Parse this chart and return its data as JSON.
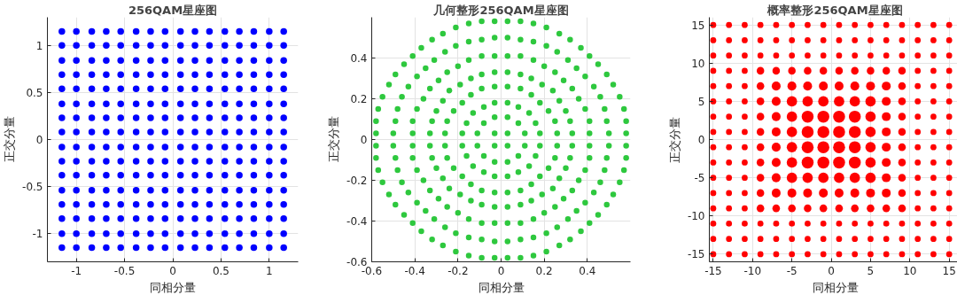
{
  "chart_data": [
    {
      "type": "scatter",
      "title": "256QAM星座图",
      "xlabel": "同相分量",
      "ylabel": "正交分量",
      "marker": "circle",
      "grid": true,
      "xlim": [
        -1.3,
        1.3
      ],
      "ylim": [
        -1.3,
        1.3
      ],
      "xticks": [
        -1,
        -0.5,
        0,
        0.5,
        1
      ],
      "yticks": [
        -1,
        -0.5,
        0,
        0.5,
        1
      ],
      "x": [
        -1.15,
        -1.0,
        -0.84,
        -0.69,
        -0.54,
        -0.38,
        -0.23,
        -0.08,
        0.08,
        0.23,
        0.38,
        0.54,
        0.69,
        0.84,
        1.0,
        1.15
      ],
      "series": [
        {
          "color": "#0000ff",
          "values": [
            1.15,
            1.15,
            1.15,
            1.15,
            1.15,
            1.15,
            1.15,
            1.15,
            1.15,
            1.15,
            1.15,
            1.15,
            1.15,
            1.15,
            1.15,
            1.15
          ]
        },
        {
          "color": "#0000ff",
          "values": [
            1.0,
            1.0,
            1.0,
            1.0,
            1.0,
            1.0,
            1.0,
            1.0,
            1.0,
            1.0,
            1.0,
            1.0,
            1.0,
            1.0,
            1.0,
            1.0
          ]
        },
        {
          "color": "#0000ff",
          "values": [
            0.84,
            0.84,
            0.84,
            0.84,
            0.84,
            0.84,
            0.84,
            0.84,
            0.84,
            0.84,
            0.84,
            0.84,
            0.84,
            0.84,
            0.84,
            0.84
          ]
        },
        {
          "color": "#0000ff",
          "values": [
            0.69,
            0.69,
            0.69,
            0.69,
            0.69,
            0.69,
            0.69,
            0.69,
            0.69,
            0.69,
            0.69,
            0.69,
            0.69,
            0.69,
            0.69,
            0.69
          ]
        },
        {
          "color": "#0000ff",
          "values": [
            0.54,
            0.54,
            0.54,
            0.54,
            0.54,
            0.54,
            0.54,
            0.54,
            0.54,
            0.54,
            0.54,
            0.54,
            0.54,
            0.54,
            0.54,
            0.54
          ]
        },
        {
          "color": "#0000ff",
          "values": [
            0.38,
            0.38,
            0.38,
            0.38,
            0.38,
            0.38,
            0.38,
            0.38,
            0.38,
            0.38,
            0.38,
            0.38,
            0.38,
            0.38,
            0.38,
            0.38
          ]
        },
        {
          "color": "#0000ff",
          "values": [
            0.23,
            0.23,
            0.23,
            0.23,
            0.23,
            0.23,
            0.23,
            0.23,
            0.23,
            0.23,
            0.23,
            0.23,
            0.23,
            0.23,
            0.23,
            0.23
          ]
        },
        {
          "color": "#0000ff",
          "values": [
            0.08,
            0.08,
            0.08,
            0.08,
            0.08,
            0.08,
            0.08,
            0.08,
            0.08,
            0.08,
            0.08,
            0.08,
            0.08,
            0.08,
            0.08,
            0.08
          ]
        },
        {
          "color": "#0000ff",
          "values": [
            -0.08,
            -0.08,
            -0.08,
            -0.08,
            -0.08,
            -0.08,
            -0.08,
            -0.08,
            -0.08,
            -0.08,
            -0.08,
            -0.08,
            -0.08,
            -0.08,
            -0.08,
            -0.08
          ]
        },
        {
          "color": "#0000ff",
          "values": [
            -0.23,
            -0.23,
            -0.23,
            -0.23,
            -0.23,
            -0.23,
            -0.23,
            -0.23,
            -0.23,
            -0.23,
            -0.23,
            -0.23,
            -0.23,
            -0.23,
            -0.23,
            -0.23
          ]
        },
        {
          "color": "#0000ff",
          "values": [
            -0.38,
            -0.38,
            -0.38,
            -0.38,
            -0.38,
            -0.38,
            -0.38,
            -0.38,
            -0.38,
            -0.38,
            -0.38,
            -0.38,
            -0.38,
            -0.38,
            -0.38,
            -0.38
          ]
        },
        {
          "color": "#0000ff",
          "values": [
            -0.54,
            -0.54,
            -0.54,
            -0.54,
            -0.54,
            -0.54,
            -0.54,
            -0.54,
            -0.54,
            -0.54,
            -0.54,
            -0.54,
            -0.54,
            -0.54,
            -0.54,
            -0.54
          ]
        },
        {
          "color": "#0000ff",
          "values": [
            -0.69,
            -0.69,
            -0.69,
            -0.69,
            -0.69,
            -0.69,
            -0.69,
            -0.69,
            -0.69,
            -0.69,
            -0.69,
            -0.69,
            -0.69,
            -0.69,
            -0.69,
            -0.69
          ]
        },
        {
          "color": "#0000ff",
          "values": [
            -0.84,
            -0.84,
            -0.84,
            -0.84,
            -0.84,
            -0.84,
            -0.84,
            -0.84,
            -0.84,
            -0.84,
            -0.84,
            -0.84,
            -0.84,
            -0.84,
            -0.84,
            -0.84
          ]
        },
        {
          "color": "#0000ff",
          "values": [
            -1.0,
            -1.0,
            -1.0,
            -1.0,
            -1.0,
            -1.0,
            -1.0,
            -1.0,
            -1.0,
            -1.0,
            -1.0,
            -1.0,
            -1.0,
            -1.0,
            -1.0,
            -1.0
          ]
        },
        {
          "color": "#0000ff",
          "values": [
            -1.15,
            -1.15,
            -1.15,
            -1.15,
            -1.15,
            -1.15,
            -1.15,
            -1.15,
            -1.15,
            -1.15,
            -1.15,
            -1.15,
            -1.15,
            -1.15,
            -1.15,
            -1.15
          ]
        }
      ]
    },
    {
      "type": "scatter",
      "title": "几何整形256QAM星座图",
      "xlabel": "同相分量",
      "ylabel": "正交分量",
      "marker": "circle",
      "grid": true,
      "xlim": [
        -0.6,
        0.6
      ],
      "ylim": [
        -0.6,
        0.6
      ],
      "xticks": [
        -0.6,
        -0.4,
        -0.2,
        0,
        0.2,
        0.4
      ],
      "yticks": [
        -0.6,
        -0.4,
        -0.2,
        0,
        0.2,
        0.4
      ],
      "series": [
        {
          "color": "#2ec83e",
          "x": [
            0.03,
            -0.03,
            -0.03,
            0.03
          ],
          "values": [
            0.03,
            0.03,
            -0.03,
            -0.03
          ]
        },
        {
          "color": "#2ec83e",
          "x": [
            0.11,
            0.08,
            0.03,
            -0.11,
            -0.08,
            -0.03,
            -0.11,
            -0.08,
            -0.03,
            0.11,
            0.08,
            0.03
          ],
          "values": [
            0.03,
            0.08,
            0.11,
            0.03,
            0.08,
            0.11,
            -0.03,
            -0.08,
            -0.11,
            -0.03,
            -0.08,
            -0.11
          ]
        },
        {
          "color": "#2ec83e",
          "x": [
            0.18,
            0.16,
            0.13,
            0.08,
            0.03,
            -0.18,
            -0.16,
            -0.13,
            -0.08,
            -0.03,
            -0.18,
            -0.16,
            -0.13,
            -0.08,
            -0.03,
            0.18,
            0.16,
            0.13,
            0.08,
            0.03
          ],
          "values": [
            0.03,
            0.08,
            0.13,
            0.16,
            0.18,
            0.03,
            0.08,
            0.13,
            0.16,
            0.18,
            -0.03,
            -0.08,
            -0.13,
            -0.16,
            -0.18,
            -0.03,
            -0.08,
            -0.13,
            -0.16,
            -0.18
          ]
        },
        {
          "color": "#2ec83e",
          "x": [
            0.26,
            0.25,
            0.22,
            0.18,
            0.14,
            0.09,
            0.03,
            -0.26,
            -0.25,
            -0.22,
            -0.18,
            -0.14,
            -0.09,
            -0.03,
            -0.26,
            -0.25,
            -0.22,
            -0.18,
            -0.14,
            -0.09,
            -0.03,
            0.26,
            0.25,
            0.22,
            0.18,
            0.14,
            0.09,
            0.03
          ],
          "values": [
            0.03,
            0.09,
            0.14,
            0.18,
            0.22,
            0.25,
            0.26,
            0.03,
            0.09,
            0.14,
            0.18,
            0.22,
            0.25,
            0.26,
            -0.03,
            -0.09,
            -0.14,
            -0.18,
            -0.22,
            -0.25,
            -0.26,
            -0.03,
            -0.09,
            -0.14,
            -0.18,
            -0.22,
            -0.25,
            -0.26
          ]
        },
        {
          "color": "#2ec83e",
          "x": [
            0.33,
            0.32,
            0.3,
            0.27,
            0.24,
            0.19,
            0.14,
            0.09,
            0.03,
            -0.33,
            -0.32,
            -0.3,
            -0.27,
            -0.24,
            -0.19,
            -0.14,
            -0.09,
            -0.03,
            -0.33,
            -0.32,
            -0.3,
            -0.27,
            -0.24,
            -0.19,
            -0.14,
            -0.09,
            -0.03,
            0.33,
            0.32,
            0.3,
            0.27,
            0.24,
            0.19,
            0.14,
            0.09,
            0.03
          ],
          "values": [
            0.03,
            0.09,
            0.14,
            0.19,
            0.24,
            0.27,
            0.3,
            0.32,
            0.33,
            0.03,
            0.09,
            0.14,
            0.19,
            0.24,
            0.27,
            0.3,
            0.32,
            0.33,
            -0.03,
            -0.09,
            -0.14,
            -0.19,
            -0.24,
            -0.27,
            -0.3,
            -0.32,
            -0.33,
            -0.03,
            -0.09,
            -0.14,
            -0.19,
            -0.24,
            -0.27,
            -0.3,
            -0.32,
            -0.33
          ]
        },
        {
          "color": "#2ec83e",
          "x": [
            0.41,
            0.41,
            0.39,
            0.36,
            0.33,
            0.29,
            0.25,
            0.2,
            0.15,
            0.09,
            0.03,
            -0.41,
            -0.41,
            -0.39,
            -0.36,
            -0.33,
            -0.29,
            -0.25,
            -0.2,
            -0.15,
            -0.09,
            -0.03,
            -0.41,
            -0.41,
            -0.39,
            -0.36,
            -0.33,
            -0.29,
            -0.25,
            -0.2,
            -0.15,
            -0.09,
            -0.03,
            0.41,
            0.41,
            0.39,
            0.36,
            0.33,
            0.29,
            0.25,
            0.2,
            0.15,
            0.09,
            0.03
          ],
          "values": [
            0.03,
            0.09,
            0.15,
            0.2,
            0.25,
            0.29,
            0.33,
            0.36,
            0.39,
            0.41,
            0.41,
            0.03,
            0.09,
            0.15,
            0.2,
            0.25,
            0.29,
            0.33,
            0.36,
            0.39,
            0.41,
            0.41,
            -0.03,
            -0.09,
            -0.15,
            -0.2,
            -0.25,
            -0.29,
            -0.33,
            -0.36,
            -0.39,
            -0.41,
            -0.41,
            -0.03,
            -0.09,
            -0.15,
            -0.2,
            -0.25,
            -0.29,
            -0.33,
            -0.36,
            -0.39,
            -0.41,
            -0.41
          ]
        },
        {
          "color": "#2ec83e",
          "x": [
            0.5,
            0.49,
            0.48,
            0.46,
            0.43,
            0.39,
            0.35,
            0.31,
            0.26,
            0.21,
            0.15,
            0.09,
            0.03,
            -0.5,
            -0.49,
            -0.48,
            -0.46,
            -0.43,
            -0.39,
            -0.35,
            -0.31,
            -0.26,
            -0.21,
            -0.15,
            -0.09,
            -0.03,
            -0.5,
            -0.49,
            -0.48,
            -0.46,
            -0.43,
            -0.39,
            -0.35,
            -0.31,
            -0.26,
            -0.21,
            -0.15,
            -0.09,
            -0.03,
            0.5,
            0.49,
            0.48,
            0.46,
            0.43,
            0.39,
            0.35,
            0.31,
            0.26,
            0.21,
            0.15,
            0.09,
            0.03
          ],
          "values": [
            0.03,
            0.09,
            0.15,
            0.21,
            0.26,
            0.31,
            0.35,
            0.39,
            0.43,
            0.46,
            0.48,
            0.49,
            0.5,
            0.03,
            0.09,
            0.15,
            0.21,
            0.26,
            0.31,
            0.35,
            0.39,
            0.43,
            0.46,
            0.48,
            0.49,
            0.5,
            -0.03,
            -0.09,
            -0.15,
            -0.21,
            -0.26,
            -0.31,
            -0.35,
            -0.39,
            -0.43,
            -0.46,
            -0.48,
            -0.49,
            -0.5,
            -0.03,
            -0.09,
            -0.15,
            -0.21,
            -0.26,
            -0.31,
            -0.35,
            -0.39,
            -0.43,
            -0.46,
            -0.48,
            -0.49,
            -0.5
          ]
        },
        {
          "color": "#2ec83e",
          "x": [
            0.58,
            0.58,
            0.57,
            0.55,
            0.52,
            0.49,
            0.45,
            0.41,
            0.37,
            0.32,
            0.27,
            0.21,
            0.15,
            0.09,
            0.03,
            -0.58,
            -0.58,
            -0.57,
            -0.55,
            -0.52,
            -0.49,
            -0.45,
            -0.41,
            -0.37,
            -0.32,
            -0.27,
            -0.21,
            -0.15,
            -0.09,
            -0.03,
            -0.58,
            -0.58,
            -0.57,
            -0.55,
            -0.52,
            -0.49,
            -0.45,
            -0.41,
            -0.37,
            -0.32,
            -0.27,
            -0.21,
            -0.15,
            -0.09,
            -0.03,
            0.58,
            0.58,
            0.57,
            0.55,
            0.52,
            0.49,
            0.45,
            0.41,
            0.37,
            0.32,
            0.27,
            0.21,
            0.15,
            0.09,
            0.03
          ],
          "values": [
            0.03,
            0.09,
            0.15,
            0.21,
            0.27,
            0.32,
            0.37,
            0.41,
            0.45,
            0.49,
            0.52,
            0.55,
            0.57,
            0.58,
            0.58,
            0.03,
            0.09,
            0.15,
            0.21,
            0.27,
            0.32,
            0.37,
            0.41,
            0.45,
            0.49,
            0.52,
            0.55,
            0.57,
            0.58,
            0.58,
            -0.03,
            -0.09,
            -0.15,
            -0.21,
            -0.27,
            -0.32,
            -0.37,
            -0.41,
            -0.45,
            -0.49,
            -0.52,
            -0.55,
            -0.57,
            -0.58,
            -0.58,
            -0.03,
            -0.09,
            -0.15,
            -0.21,
            -0.27,
            -0.32,
            -0.37,
            -0.41,
            -0.45,
            -0.49,
            -0.52,
            -0.55,
            -0.57,
            -0.58,
            -0.58
          ]
        }
      ]
    },
    {
      "type": "bubble",
      "title": "概率整形256QAM星座图",
      "xlabel": "同相分量",
      "ylabel": "正交分量",
      "marker": "circle",
      "grid": true,
      "xlim": [
        -15.5,
        16.5
      ],
      "ylim": [
        -16,
        16
      ],
      "xticks": [
        -15,
        -10,
        -5,
        0,
        5,
        10,
        15
      ],
      "yticks": [
        -15,
        -10,
        -5,
        0,
        5,
        10,
        15
      ],
      "x": [
        -15,
        -13,
        -11,
        -9,
        -7,
        -5,
        -3,
        -1,
        1,
        3,
        5,
        7,
        9,
        11,
        13,
        15
      ],
      "series": [
        {
          "color": "#ff0000",
          "values": [
            15,
            15,
            15,
            15,
            15,
            15,
            15,
            15,
            15,
            15,
            15,
            15,
            15,
            15,
            15,
            15
          ],
          "sizes": [
            0.25,
            0.25,
            0.25,
            0.25,
            0.25,
            0.25,
            0.25,
            0.25,
            0.25,
            0.25,
            0.25,
            0.25,
            0.25,
            0.25,
            0.25,
            0.25
          ]
        },
        {
          "color": "#ff0000",
          "values": [
            13,
            13,
            13,
            13,
            13,
            13,
            13,
            13,
            13,
            13,
            13,
            13,
            13,
            13,
            13,
            13
          ],
          "sizes": [
            0.25,
            0.25,
            0.25,
            0.25,
            0.25,
            0.25,
            0.25,
            0.25,
            0.25,
            0.25,
            0.25,
            0.25,
            0.25,
            0.25,
            0.25,
            0.25
          ]
        },
        {
          "color": "#ff0000",
          "values": [
            11,
            11,
            11,
            11,
            11,
            11,
            11,
            11,
            11,
            11,
            11,
            11,
            11,
            11,
            11,
            11
          ],
          "sizes": [
            0.25,
            0.25,
            0.25,
            0.25,
            0.25,
            0.25,
            0.25,
            0.25,
            0.25,
            0.25,
            0.25,
            0.25,
            0.25,
            0.25,
            0.25,
            0.25
          ]
        },
        {
          "color": "#ff0000",
          "values": [
            9,
            9,
            9,
            9,
            9,
            9,
            9,
            9,
            9,
            9,
            9,
            9,
            9,
            9,
            9,
            9
          ],
          "sizes": [
            0.25,
            0.25,
            0.25,
            0.4,
            0.4,
            0.4,
            0.4,
            0.4,
            0.4,
            0.4,
            0.4,
            0.4,
            0.4,
            0.25,
            0.25,
            0.25
          ]
        },
        {
          "color": "#ff0000",
          "values": [
            7,
            7,
            7,
            7,
            7,
            7,
            7,
            7,
            7,
            7,
            7,
            7,
            7,
            7,
            7,
            7
          ],
          "sizes": [
            0.25,
            0.25,
            0.25,
            0.4,
            0.55,
            0.55,
            0.55,
            0.55,
            0.55,
            0.55,
            0.55,
            0.55,
            0.4,
            0.25,
            0.25,
            0.25
          ]
        },
        {
          "color": "#ff0000",
          "values": [
            5,
            5,
            5,
            5,
            5,
            5,
            5,
            5,
            5,
            5,
            5,
            5,
            5,
            5,
            5,
            5
          ],
          "sizes": [
            0.25,
            0.25,
            0.25,
            0.4,
            0.55,
            0.75,
            0.75,
            0.75,
            0.75,
            0.75,
            0.75,
            0.55,
            0.4,
            0.25,
            0.25,
            0.25
          ]
        },
        {
          "color": "#ff0000",
          "values": [
            3,
            3,
            3,
            3,
            3,
            3,
            3,
            3,
            3,
            3,
            3,
            3,
            3,
            3,
            3,
            3
          ],
          "sizes": [
            0.25,
            0.25,
            0.25,
            0.4,
            0.55,
            0.75,
            1,
            1,
            1,
            1,
            0.75,
            0.55,
            0.4,
            0.25,
            0.25,
            0.25
          ]
        },
        {
          "color": "#ff0000",
          "values": [
            1,
            1,
            1,
            1,
            1,
            1,
            1,
            1,
            1,
            1,
            1,
            1,
            1,
            1,
            1,
            1
          ],
          "sizes": [
            0.25,
            0.25,
            0.25,
            0.4,
            0.55,
            0.75,
            1,
            1,
            1,
            1,
            0.75,
            0.55,
            0.4,
            0.25,
            0.25,
            0.25
          ]
        },
        {
          "color": "#ff0000",
          "values": [
            -1,
            -1,
            -1,
            -1,
            -1,
            -1,
            -1,
            -1,
            -1,
            -1,
            -1,
            -1,
            -1,
            -1,
            -1,
            -1
          ],
          "sizes": [
            0.25,
            0.25,
            0.25,
            0.4,
            0.55,
            0.75,
            1,
            1,
            1,
            1,
            0.75,
            0.55,
            0.4,
            0.25,
            0.25,
            0.25
          ]
        },
        {
          "color": "#ff0000",
          "values": [
            -3,
            -3,
            -3,
            -3,
            -3,
            -3,
            -3,
            -3,
            -3,
            -3,
            -3,
            -3,
            -3,
            -3,
            -3,
            -3
          ],
          "sizes": [
            0.25,
            0.25,
            0.25,
            0.4,
            0.55,
            0.75,
            1,
            1,
            1,
            1,
            0.75,
            0.55,
            0.4,
            0.25,
            0.25,
            0.25
          ]
        },
        {
          "color": "#ff0000",
          "values": [
            -5,
            -5,
            -5,
            -5,
            -5,
            -5,
            -5,
            -5,
            -5,
            -5,
            -5,
            -5,
            -5,
            -5,
            -5,
            -5
          ],
          "sizes": [
            0.25,
            0.25,
            0.25,
            0.4,
            0.55,
            0.75,
            0.75,
            0.75,
            0.75,
            0.75,
            0.75,
            0.55,
            0.4,
            0.25,
            0.25,
            0.25
          ]
        },
        {
          "color": "#ff0000",
          "values": [
            -7,
            -7,
            -7,
            -7,
            -7,
            -7,
            -7,
            -7,
            -7,
            -7,
            -7,
            -7,
            -7,
            -7,
            -7,
            -7
          ],
          "sizes": [
            0.25,
            0.25,
            0.25,
            0.4,
            0.55,
            0.55,
            0.55,
            0.55,
            0.55,
            0.55,
            0.55,
            0.55,
            0.4,
            0.25,
            0.25,
            0.25
          ]
        },
        {
          "color": "#ff0000",
          "values": [
            -9,
            -9,
            -9,
            -9,
            -9,
            -9,
            -9,
            -9,
            -9,
            -9,
            -9,
            -9,
            -9,
            -9,
            -9,
            -9
          ],
          "sizes": [
            0.25,
            0.25,
            0.25,
            0.4,
            0.4,
            0.4,
            0.4,
            0.4,
            0.4,
            0.4,
            0.4,
            0.4,
            0.4,
            0.25,
            0.25,
            0.25
          ]
        },
        {
          "color": "#ff0000",
          "values": [
            -11,
            -11,
            -11,
            -11,
            -11,
            -11,
            -11,
            -11,
            -11,
            -11,
            -11,
            -11,
            -11,
            -11,
            -11,
            -11
          ],
          "sizes": [
            0.25,
            0.25,
            0.25,
            0.25,
            0.25,
            0.25,
            0.25,
            0.25,
            0.25,
            0.25,
            0.25,
            0.25,
            0.25,
            0.25,
            0.25,
            0.25
          ]
        },
        {
          "color": "#ff0000",
          "values": [
            -13,
            -13,
            -13,
            -13,
            -13,
            -13,
            -13,
            -13,
            -13,
            -13,
            -13,
            -13,
            -13,
            -13,
            -13,
            -13
          ],
          "sizes": [
            0.25,
            0.25,
            0.25,
            0.25,
            0.25,
            0.25,
            0.25,
            0.25,
            0.25,
            0.25,
            0.25,
            0.25,
            0.25,
            0.25,
            0.25,
            0.25
          ]
        },
        {
          "color": "#ff0000",
          "values": [
            -15,
            -15,
            -15,
            -15,
            -15,
            -15,
            -15,
            -15,
            -15,
            -15,
            -15,
            -15,
            -15,
            -15,
            -15,
            -15
          ],
          "sizes": [
            0.25,
            0.25,
            0.25,
            0.25,
            0.25,
            0.25,
            0.25,
            0.25,
            0.25,
            0.25,
            0.25,
            0.25,
            0.25,
            0.25,
            0.25,
            0.25
          ]
        }
      ]
    }
  ]
}
